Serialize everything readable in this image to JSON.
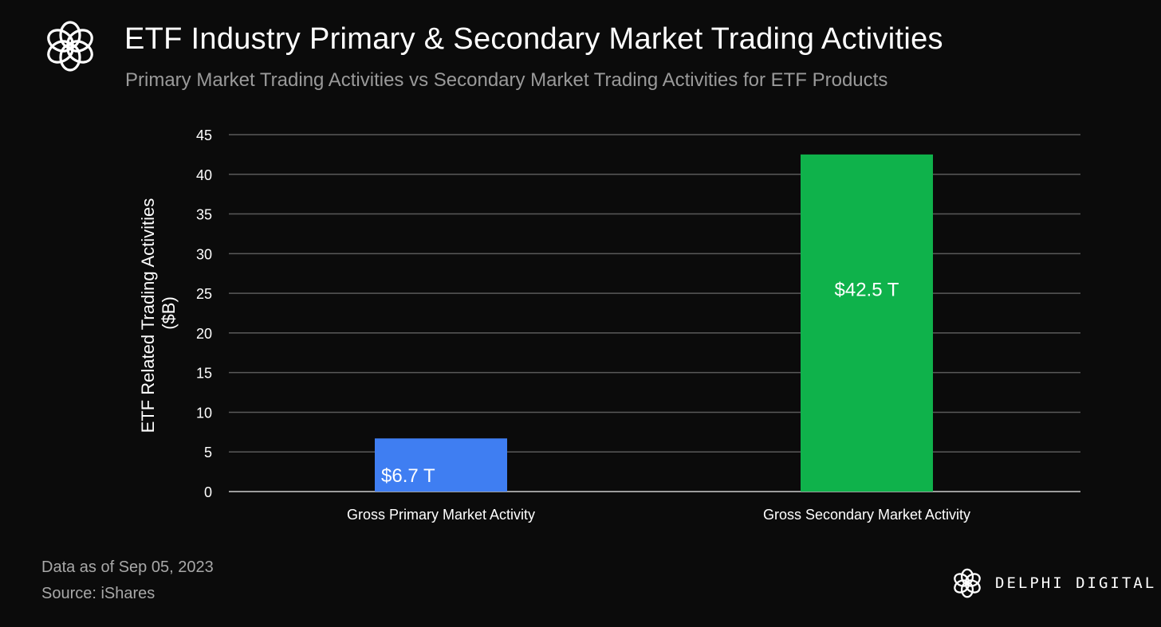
{
  "header": {
    "logo_icon": "delphi-flower-icon",
    "title": "ETF Industry Primary & Secondary Market Trading Activities",
    "subtitle": "Primary Market Trading Activities vs Secondary Market Trading Activities for ETF Products"
  },
  "chart_data": {
    "type": "bar",
    "title": "ETF Industry Primary & Secondary Market Trading Activities",
    "subtitle": "Primary Market Trading Activities vs Secondary Market Trading Activities for ETF Products",
    "categories": [
      "Gross Primary Market Activity",
      "Gross Secondary Market Activity"
    ],
    "values": [
      6.7,
      42.5
    ],
    "data_labels": [
      "$6.7 T",
      "$42.5 T"
    ],
    "bar_colors": [
      "#3f7ef2",
      "#0fb24b"
    ],
    "xlabel": "",
    "ylabel": "ETF Related Trading Activities ($B)",
    "ylabel_lines": [
      "ETF Related Trading Activities",
      "($B)"
    ],
    "ylim": [
      0,
      45
    ],
    "yticks": [
      0,
      5,
      10,
      15,
      20,
      25,
      30,
      35,
      40,
      45
    ],
    "grid": true,
    "legend": "none"
  },
  "footer": {
    "date_note": "Data as of Sep 05, 2023",
    "source_note": "Source: iShares",
    "brand_icon": "delphi-flower-icon",
    "brand_name": "DELPHI DIGITAL"
  }
}
